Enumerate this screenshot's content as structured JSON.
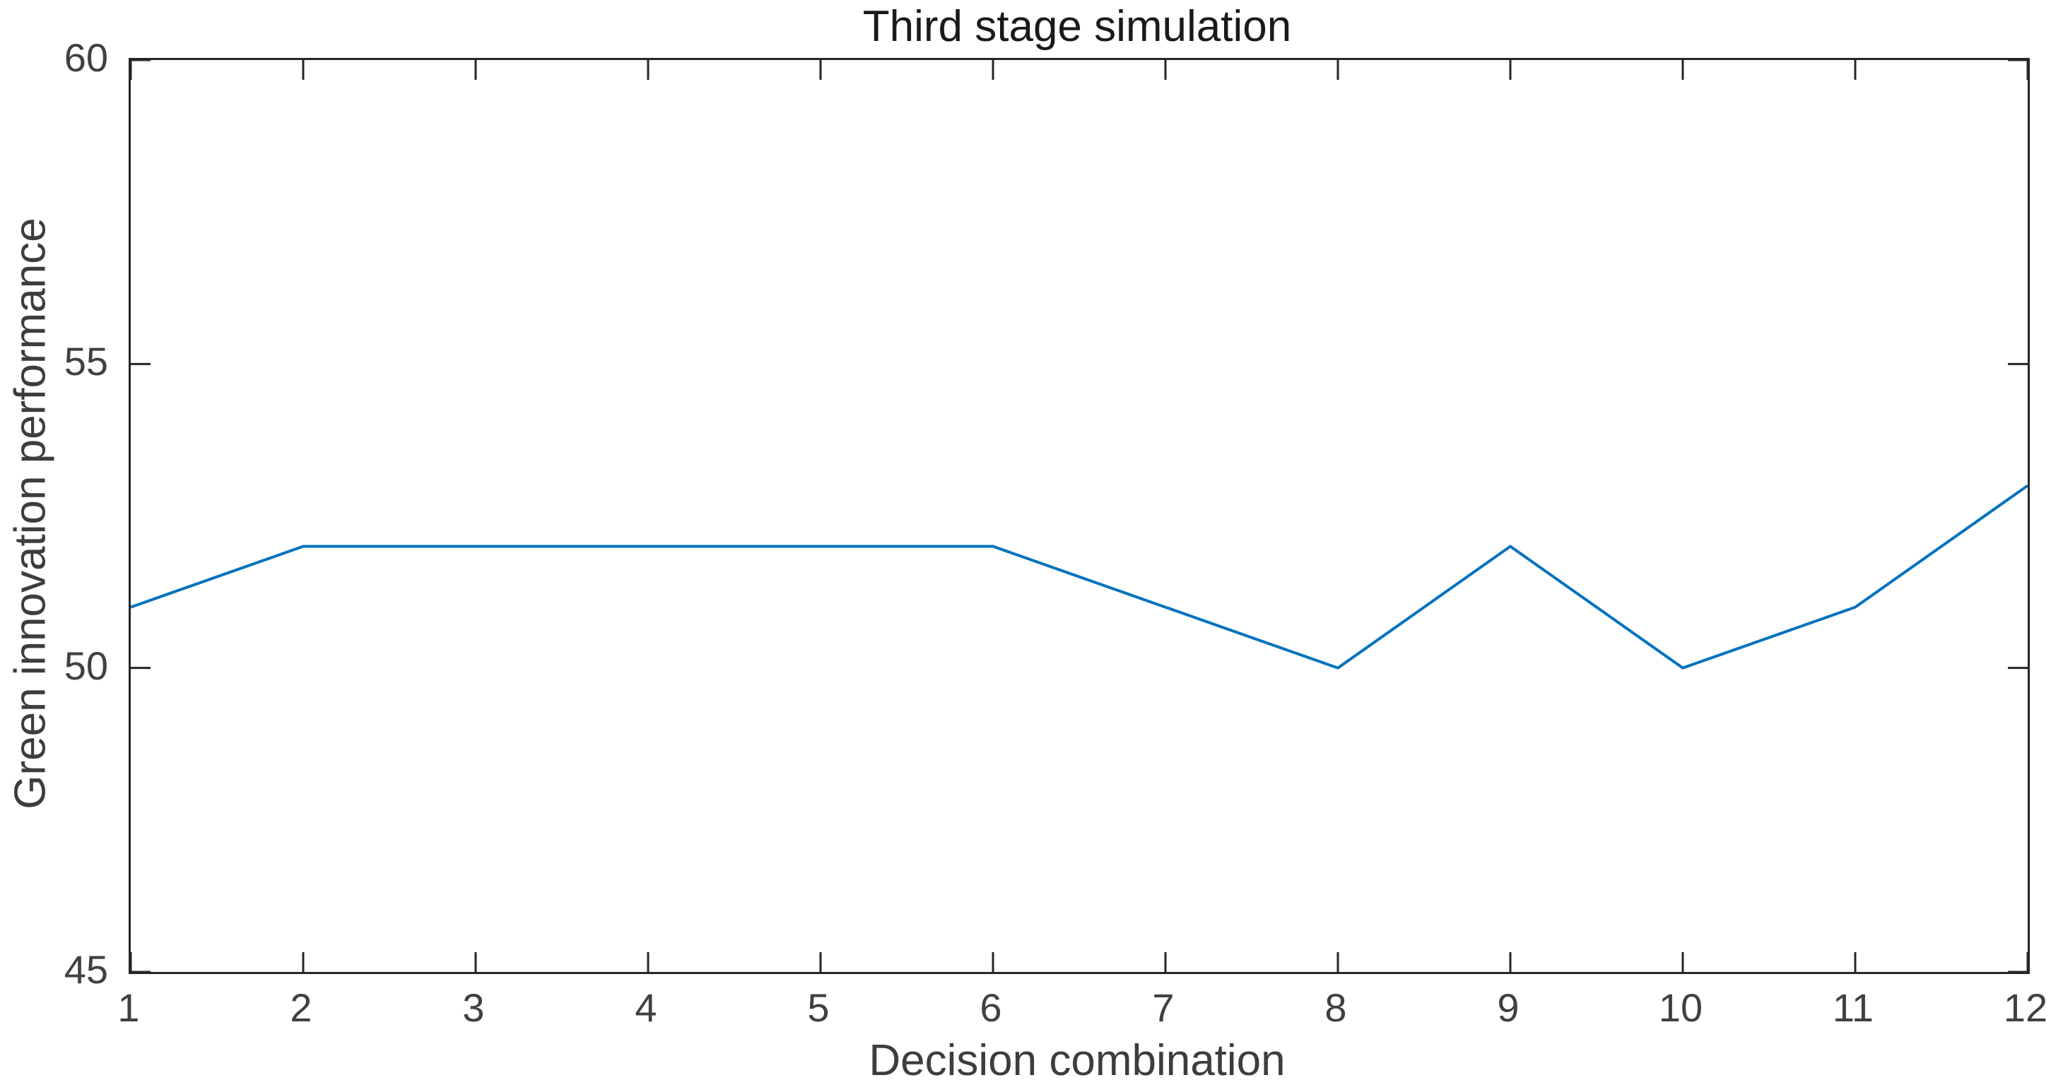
{
  "chart_data": {
    "type": "line",
    "title": "Third stage simulation",
    "xlabel": "Decision combination",
    "ylabel": "Green innovation performance",
    "x": [
      1,
      2,
      3,
      4,
      5,
      6,
      7,
      8,
      9,
      10,
      11,
      12
    ],
    "series": [
      {
        "name": "Green innovation performance",
        "values": [
          51,
          52,
          52,
          52,
          52,
          52,
          51,
          50,
          52,
          50,
          51,
          53
        ]
      }
    ],
    "xlim": [
      1,
      12
    ],
    "ylim": [
      45,
      60
    ],
    "xticks": [
      1,
      2,
      3,
      4,
      5,
      6,
      7,
      8,
      9,
      10,
      11,
      12
    ],
    "yticks": [
      45,
      50,
      55,
      60
    ],
    "grid": false,
    "legend": "none",
    "box": true,
    "colors": {
      "line": "#0072BD",
      "axis": "#262626",
      "tick_label": "#404040",
      "axis_label": "#3d3d3d",
      "title": "#1a1a1a",
      "background": "#ffffff"
    }
  }
}
